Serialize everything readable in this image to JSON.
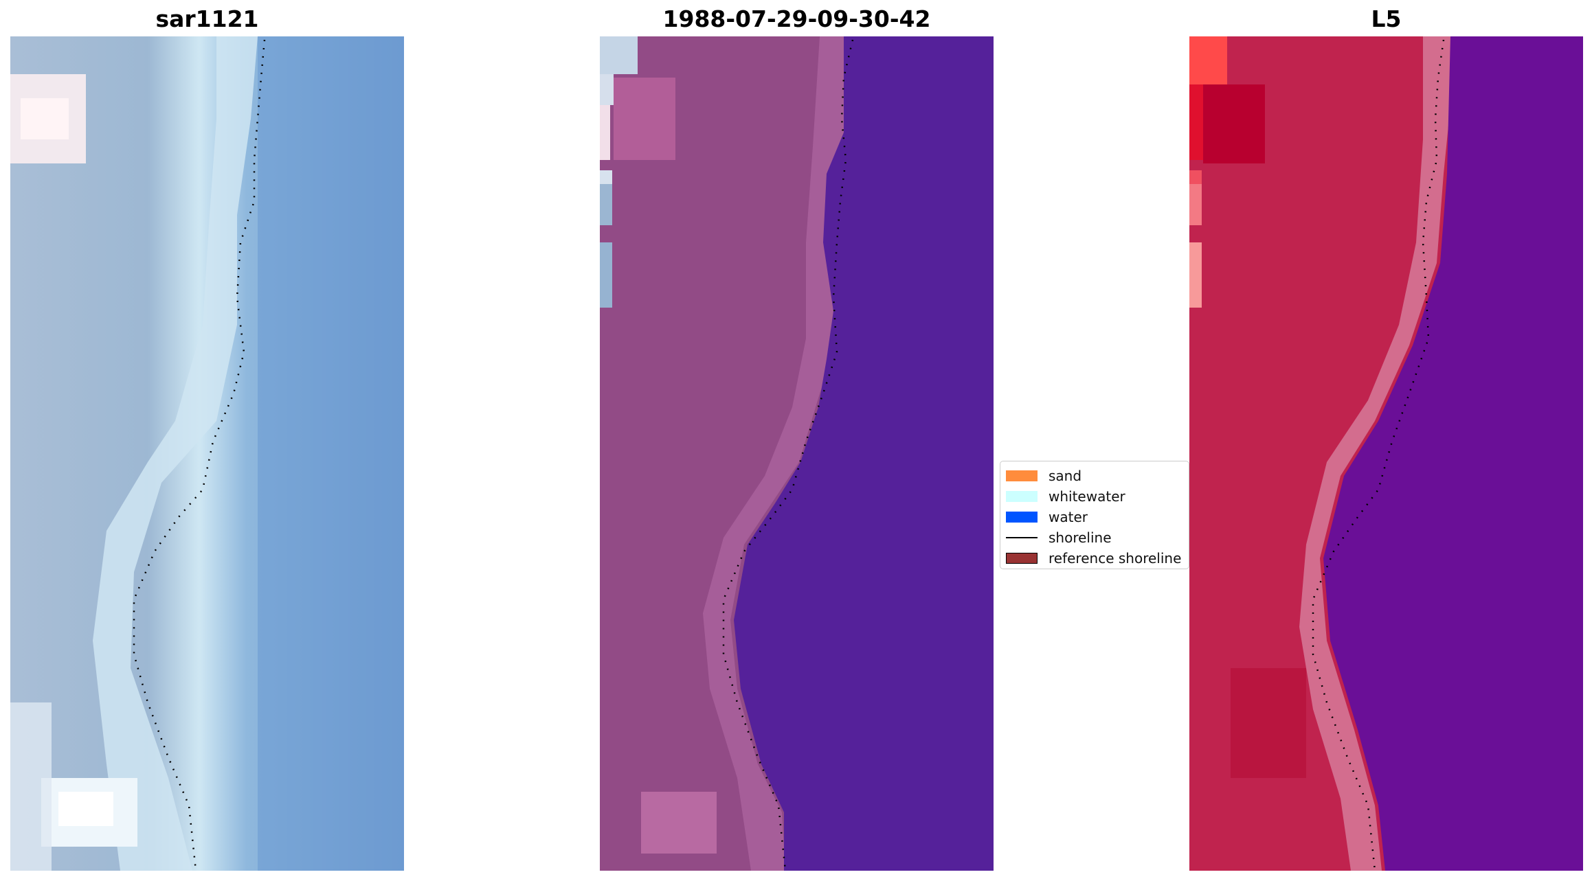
{
  "panels": [
    {
      "title": "sar1121",
      "image": "rgb-image"
    },
    {
      "title": "1988-07-29-09-30-42",
      "image": "classified-image"
    },
    {
      "title": "L5",
      "image": "index-image"
    }
  ],
  "legend": {
    "items": [
      {
        "label": "sand",
        "color": "#ff8c3c"
      },
      {
        "label": "whitewater",
        "color": "#ccffff"
      },
      {
        "label": "water",
        "color": "#0055ff"
      },
      {
        "label": "shoreline",
        "color": "#000000"
      },
      {
        "label": "reference shoreline",
        "color": "#993333"
      }
    ]
  }
}
